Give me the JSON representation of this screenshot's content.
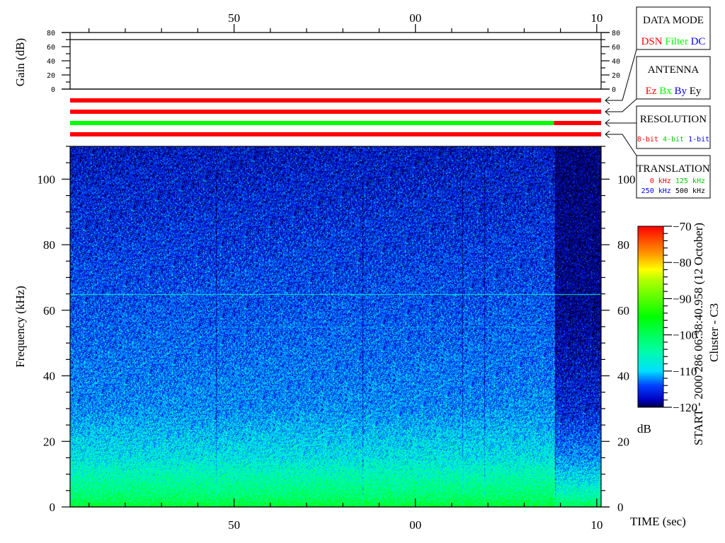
{
  "chart_data": [
    {
      "type": "line",
      "panel": "gain",
      "ylabel": "Gain (dB)",
      "ylim": [
        0,
        80
      ],
      "yticks": [
        "0",
        "20",
        "40",
        "60",
        "80"
      ],
      "series": [
        {
          "x": [
            "06:38:40.958",
            "06:39:10.24"
          ],
          "y": [
            70,
            70
          ]
        }
      ]
    },
    {
      "type": "bar",
      "panel": "status-bars",
      "rows": [
        {
          "legend": "DATA MODE",
          "segments": [
            {
              "from": "06:38:40.958",
              "to": "06:39:10.24",
              "value": "DSN",
              "color": "#ff0000"
            }
          ]
        },
        {
          "legend": "ANTENNA",
          "segments": [
            {
              "from": "06:38:40.958",
              "to": "06:39:10.24",
              "value": "Ez",
              "color": "#ff0000"
            }
          ]
        },
        {
          "legend": "RESOLUTION",
          "segments": [
            {
              "from": "06:38:40.958",
              "to": "06:39:07.64",
              "value": "4-bit",
              "color": "#00ff00"
            },
            {
              "from": "06:39:07.64",
              "to": "06:39:10.24",
              "value": "8-bit",
              "color": "#ff0000"
            }
          ]
        },
        {
          "legend": "TRANSLATION",
          "segments": [
            {
              "from": "06:38:40.958",
              "to": "06:39:10.24",
              "value": "0 kHz",
              "color": "#ff0000"
            }
          ]
        }
      ]
    },
    {
      "type": "heatmap",
      "panel": "spectrogram",
      "xlabel": "TIME (sec)",
      "ylabel": "Frequency (kHz)",
      "xlim": [
        "06:38:40.958",
        "06:39:10.24"
      ],
      "xticks": [
        {
          "time": "06:38:50",
          "label": "50"
        },
        {
          "time": "06:39:00",
          "label": "00"
        },
        {
          "time": "06:39:10",
          "label": "10"
        }
      ],
      "ylim": [
        0,
        110
      ],
      "yticks": [
        "0",
        "20",
        "40",
        "60",
        "80",
        "100"
      ],
      "colorbar": {
        "label": "dB",
        "range": [
          -120,
          -70
        ],
        "ticks": [
          "-70",
          "-80",
          "-90",
          "-100",
          "-110",
          "-120"
        ],
        "colormap": "jet"
      },
      "mean_spectrum_db": {
        "frequency_khz": [
          0,
          3,
          8,
          15,
          30,
          60,
          110
        ],
        "before_06:39:07.7": [
          -97,
          -101,
          -104,
          -108,
          -112,
          -114,
          -117
        ],
        "after_06:39:07.7": [
          -99,
          -104,
          -108,
          -112,
          -116,
          -119,
          -120
        ]
      },
      "narrowband_lines": [
        {
          "frequency_khz": 65,
          "level_db": -107,
          "from": "06:38:40.958",
          "to": "06:39:10.24"
        },
        {
          "frequency_khz": 55,
          "level_db": -112,
          "from": "06:38:49",
          "to": "06:39:07.7"
        }
      ],
      "dropout_times": [
        "06:38:49.0",
        "06:38:57.1",
        "06:39:02.6",
        "06:39:03.8",
        "06:39:07.7"
      ]
    }
  ],
  "legend": {
    "data_mode": {
      "title": "DATA MODE",
      "items": [
        {
          "label": "DSN",
          "color": "#ff0000"
        },
        {
          "label": "Filter",
          "color": "#00ff00"
        },
        {
          "label": "DC",
          "color": "#0000ff"
        }
      ]
    },
    "antenna": {
      "title": "ANTENNA",
      "items": [
        {
          "label": "Ez",
          "color": "#ff0000"
        },
        {
          "label": "Bx",
          "color": "#00ff00"
        },
        {
          "label": "By",
          "color": "#0000ff"
        },
        {
          "label": "Ey",
          "color": "#000000"
        }
      ]
    },
    "resolution": {
      "title": "RESOLUTION",
      "items": [
        {
          "label": "8-bit",
          "color": "#ff0000"
        },
        {
          "label": "4-bit",
          "color": "#00ff00"
        },
        {
          "label": "1-bit",
          "color": "#0000ff"
        }
      ]
    },
    "translation": {
      "title": "TRANSLATION",
      "items": [
        {
          "label": "0 kHz",
          "color": "#ff0000"
        },
        {
          "label": "125 kHz",
          "color": "#00ff00"
        },
        {
          "label": "250 kHz",
          "color": "#0000ff"
        },
        {
          "label": "500 kHz",
          "color": "#000000"
        }
      ]
    }
  },
  "footer": {
    "start": "START - 2000 286 06:38:40.958 (12 October)",
    "spacecraft": "Cluster - C3"
  }
}
